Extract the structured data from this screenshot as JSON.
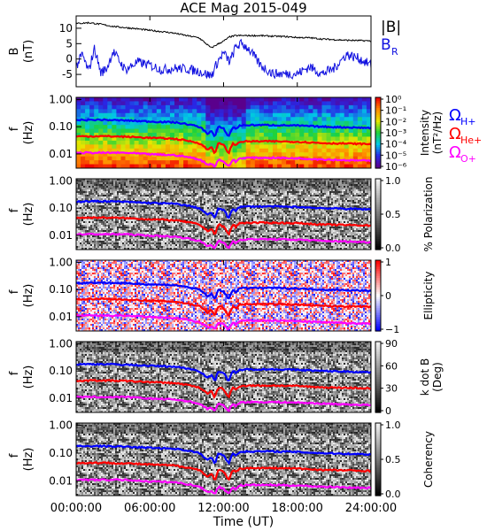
{
  "title": "ACE Mag 2015-049",
  "x_axis": {
    "label": "Time (UT)",
    "ticks": [
      "00:00:00",
      "06:00:00",
      "12:00:00",
      "18:00:00",
      "24:00:00"
    ],
    "range_hours": [
      0,
      24
    ]
  },
  "freq_axis": {
    "label_line1": "f",
    "label_line2": "(Hz)",
    "ticks": [
      "1.00",
      "0.10",
      "0.01"
    ]
  },
  "legend": {
    "bmag_label": "|B|",
    "br_label": "B",
    "br_sub": "R",
    "omega_symbol": "Ω",
    "hplus_sub": "H+",
    "heplus_sub": "He+",
    "oplus_sub": "O+"
  },
  "colors": {
    "bmag": "#000000",
    "br": "#1010e0",
    "h_plus": "#0000ff",
    "he_plus": "#ff0000",
    "o_plus": "#ff00ff",
    "background": "#ffffff"
  },
  "panels": [
    {
      "id": "field",
      "ylabel_line1": "B",
      "ylabel_line2": "(nT)",
      "yticks": [
        "10",
        "5",
        "0",
        "-5"
      ]
    },
    {
      "id": "intensity",
      "cbar_label_line1": "Intensity",
      "cbar_label_line2": "(nT²/Hz)",
      "cbar_ticks": [
        "10⁰",
        "10⁻¹",
        "10⁻²",
        "10⁻³",
        "10⁻⁴",
        "10⁻⁵",
        "10⁻⁶"
      ],
      "colormap": "rainbow"
    },
    {
      "id": "polarization",
      "cbar_label_line1": "% Polarization",
      "cbar_label_line2": "",
      "cbar_ticks": [
        "1.0",
        "0.5",
        "0.0"
      ],
      "colormap": "gray"
    },
    {
      "id": "ellipticity",
      "cbar_label_line1": "Ellipticity",
      "cbar_label_line2": "",
      "cbar_ticks": [
        "1",
        "0",
        "−1"
      ],
      "colormap": "bwr"
    },
    {
      "id": "kdotb",
      "cbar_label_line1": "k dot B",
      "cbar_label_line2": "(Deg)",
      "cbar_ticks": [
        "90",
        "60",
        "30",
        "0"
      ],
      "colormap": "gray"
    },
    {
      "id": "coherency",
      "cbar_label_line1": "Coherency",
      "cbar_label_line2": "",
      "cbar_ticks": [
        "1.0",
        "0.5",
        "0.0"
      ],
      "colormap": "gray"
    }
  ],
  "chart_data": {
    "type": "line",
    "title": "ACE Mag 2015-049",
    "xlabel": "Time (UT)",
    "xlim_hours": [
      0,
      24
    ],
    "field_panel": {
      "ylabel": "B (nT)",
      "ylim": [
        -9,
        14
      ],
      "series": [
        {
          "name": "|B|",
          "x_hours": [
            0,
            1,
            2,
            3,
            4,
            5,
            6,
            7,
            8,
            9,
            10,
            11,
            11.5,
            12,
            12.5,
            13,
            14,
            15,
            16,
            17,
            18,
            19,
            20,
            21,
            22,
            23,
            24
          ],
          "values": [
            11.5,
            11.8,
            11.3,
            10.6,
            10.2,
            9.8,
            9.3,
            8.9,
            8.4,
            7.6,
            6.9,
            3.6,
            4.8,
            5.8,
            7.2,
            7.6,
            7.6,
            7.6,
            7.4,
            7.3,
            7.0,
            6.9,
            6.5,
            6.3,
            6.1,
            6.0,
            5.9
          ]
        },
        {
          "name": "B_R",
          "x_hours": [
            0,
            0.5,
            1,
            1.5,
            2,
            2.5,
            3,
            4,
            5,
            6,
            7,
            8,
            9,
            10,
            11,
            11.5,
            12,
            12.5,
            13,
            13.5,
            14,
            15,
            16,
            17,
            18,
            19,
            20,
            21,
            22,
            23,
            24
          ],
          "values": [
            -2.5,
            1.5,
            -4,
            3.5,
            -4.5,
            -3,
            2.5,
            -3.5,
            -1,
            -2,
            -3.5,
            -3,
            -3.2,
            -4.0,
            -5.5,
            -1,
            2,
            -1,
            4,
            5,
            3.5,
            -2,
            -4.8,
            -4.8,
            -4.8,
            -2.5,
            -4.8,
            -3,
            1.5,
            0.2,
            -2
          ]
        }
      ]
    },
    "cyclotron_frequencies": {
      "ylabel": "f (Hz)",
      "yscale": "log",
      "ylim": [
        0.003,
        1.2
      ],
      "x_hours": [
        0,
        2,
        4,
        6,
        8,
        9,
        10,
        10.7,
        11,
        11.3,
        11.6,
        12,
        12.4,
        12.8,
        13,
        13.3,
        14,
        16,
        18,
        20,
        22,
        24
      ],
      "series": [
        {
          "name": "Ω_H+",
          "values": [
            0.175,
            0.18,
            0.17,
            0.155,
            0.145,
            0.125,
            0.1,
            0.055,
            0.07,
            0.04,
            0.1,
            0.085,
            0.04,
            0.1,
            0.08,
            0.11,
            0.115,
            0.115,
            0.11,
            0.1,
            0.095,
            0.09
          ]
        },
        {
          "name": "Ω_He+",
          "values": [
            0.044,
            0.045,
            0.043,
            0.039,
            0.036,
            0.031,
            0.025,
            0.014,
            0.018,
            0.01,
            0.025,
            0.021,
            0.01,
            0.025,
            0.02,
            0.028,
            0.029,
            0.029,
            0.028,
            0.025,
            0.024,
            0.023
          ]
        },
        {
          "name": "Ω_O+",
          "values": [
            0.011,
            0.011,
            0.011,
            0.0097,
            0.009,
            0.0078,
            0.0063,
            0.004,
            0.0045,
            0.0033,
            0.0063,
            0.0053,
            0.0033,
            0.0063,
            0.005,
            0.0069,
            0.0072,
            0.0072,
            0.0069,
            0.0063,
            0.0059,
            0.0056
          ]
        }
      ]
    }
  }
}
